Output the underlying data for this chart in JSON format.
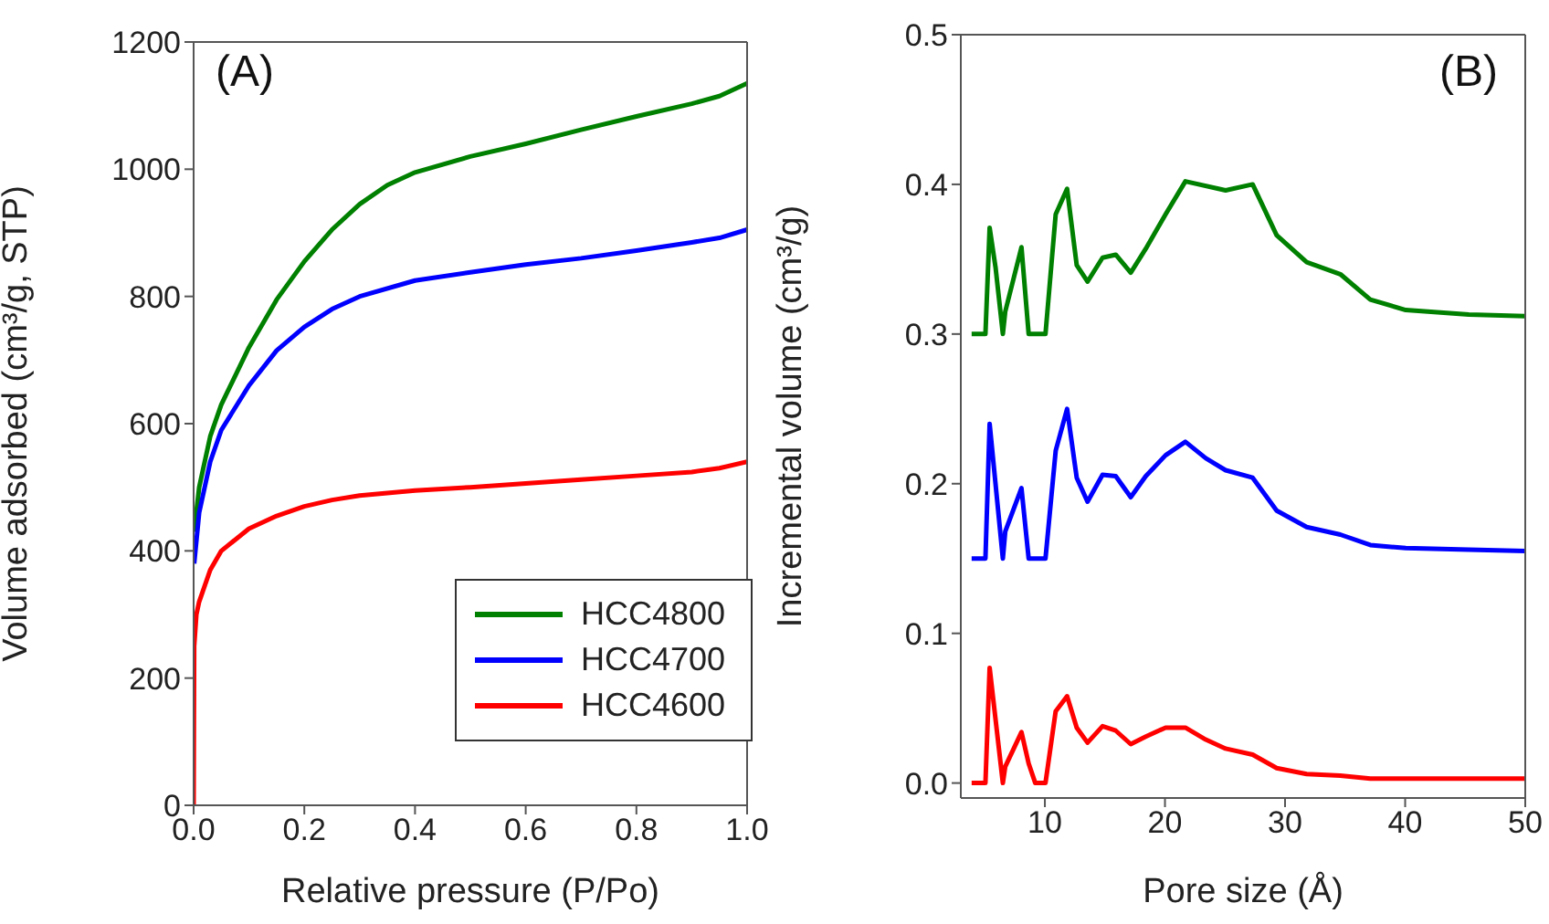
{
  "chart_data": [
    {
      "type": "line",
      "xlabel": "Relative pressure (P/Po)",
      "ylabel": "Volume adsorbed (cm³/g, STP)",
      "annotations": [
        "(A)"
      ],
      "xlim": [
        0,
        1
      ],
      "xticks": [
        {
          "value": 0,
          "label": "0.0"
        },
        {
          "value": 0.2,
          "label": "0.2"
        },
        {
          "value": 0.4,
          "label": "0.4"
        },
        {
          "value": 0.6,
          "label": "0.6"
        },
        {
          "value": 0.8,
          "label": "0.8"
        },
        {
          "value": 1,
          "label": "1.0"
        }
      ],
      "ylim": [
        0,
        1200
      ],
      "yticks": [
        0,
        200,
        400,
        600,
        800,
        1000,
        1200
      ],
      "grid": false,
      "legend": "bottom right",
      "marker": "none",
      "line_style": "solid",
      "series": [
        {
          "name": "HCC4800",
          "color": "#008000",
          "x": [
            0.001,
            0.01,
            0.03,
            0.05,
            0.1,
            0.15,
            0.2,
            0.25,
            0.3,
            0.35,
            0.4,
            0.5,
            0.6,
            0.7,
            0.8,
            0.9,
            0.95,
            1.0
          ],
          "values": [
            430,
            500,
            580,
            630,
            720,
            795,
            855,
            905,
            945,
            975,
            995,
            1020,
            1040,
            1062,
            1083,
            1103,
            1115,
            1135
          ]
        },
        {
          "name": "HCC4700",
          "color": "#0000ff",
          "x": [
            0.001,
            0.01,
            0.03,
            0.05,
            0.1,
            0.15,
            0.2,
            0.25,
            0.3,
            0.4,
            0.5,
            0.6,
            0.7,
            0.8,
            0.9,
            0.95,
            1.0
          ],
          "values": [
            380,
            460,
            540,
            590,
            660,
            715,
            752,
            780,
            800,
            825,
            838,
            850,
            860,
            872,
            885,
            892,
            905
          ]
        },
        {
          "name": "HCC4600",
          "color": "#ff0000",
          "x": [
            0,
            0.001,
            0.005,
            0.01,
            0.03,
            0.05,
            0.1,
            0.15,
            0.2,
            0.25,
            0.3,
            0.4,
            0.5,
            0.6,
            0.7,
            0.8,
            0.9,
            0.95,
            1.0
          ],
          "values": [
            0,
            250,
            300,
            320,
            370,
            400,
            435,
            455,
            470,
            480,
            487,
            495,
            500,
            506,
            512,
            518,
            524,
            530,
            540
          ]
        }
      ]
    },
    {
      "type": "line",
      "xlabel": "Pore size (Å)",
      "ylabel": "Incremental volume (cm³/g)",
      "annotations": [
        "(B)"
      ],
      "xlim": [
        3,
        50
      ],
      "xticks": [
        10,
        20,
        30,
        40,
        50
      ],
      "ylim": [
        -0.01,
        0.5
      ],
      "yticks": [
        {
          "value": 0,
          "label": "0.0"
        },
        {
          "value": 0.1,
          "label": "0.1"
        },
        {
          "value": 0.2,
          "label": "0.2"
        },
        {
          "value": 0.3,
          "label": "0.3"
        },
        {
          "value": 0.4,
          "label": "0.4"
        },
        {
          "value": 0.5,
          "label": "0.5"
        }
      ],
      "grid": false,
      "marker": "none",
      "line_style": "solid",
      "series": [
        {
          "color": "#008000",
          "x": [
            3.9,
            5.05,
            5.4,
            5.9,
            6.5,
            6.7,
            8.05,
            8.65,
            10.05,
            10.9,
            11.85,
            12.65,
            13.55,
            14.8,
            15.9,
            17.15,
            18.4,
            20.05,
            21.7,
            25.05,
            27.3,
            29.3,
            31.8,
            34.6,
            37.1,
            40.05,
            45.3,
            50
          ],
          "values": [
            0.3,
            0.3,
            0.371,
            0.344,
            0.3,
            0.315,
            0.358,
            0.3,
            0.3,
            0.38,
            0.397,
            0.346,
            0.335,
            0.351,
            0.353,
            0.341,
            0.357,
            0.38,
            0.402,
            0.396,
            0.4,
            0.366,
            0.348,
            0.34,
            0.323,
            0.316,
            0.313,
            0.312
          ]
        },
        {
          "color": "#0000ff",
          "x": [
            3.9,
            5.05,
            5.4,
            6.5,
            6.7,
            8.05,
            8.65,
            10.05,
            10.9,
            11.85,
            12.65,
            13.55,
            14.8,
            15.9,
            17.15,
            18.4,
            20.05,
            21.7,
            23.4,
            25.05,
            27.3,
            29.3,
            31.8,
            34.6,
            37.1,
            40.05,
            45.3,
            50
          ],
          "values": [
            0.15,
            0.15,
            0.24,
            0.15,
            0.168,
            0.197,
            0.15,
            0.15,
            0.222,
            0.25,
            0.204,
            0.188,
            0.206,
            0.205,
            0.191,
            0.205,
            0.219,
            0.228,
            0.217,
            0.209,
            0.204,
            0.182,
            0.171,
            0.166,
            0.159,
            0.157,
            0.156,
            0.155
          ]
        },
        {
          "color": "#ff0000",
          "x": [
            3.9,
            5.05,
            5.4,
            6.5,
            6.7,
            8.05,
            8.65,
            9.2,
            10.05,
            10.9,
            11.85,
            12.65,
            13.55,
            14.8,
            15.9,
            17.15,
            18.4,
            20.05,
            21.7,
            23.4,
            25.05,
            27.3,
            29.3,
            31.8,
            34.6,
            37.1,
            40.05,
            50
          ],
          "values": [
            0,
            0,
            0.077,
            0,
            0.011,
            0.034,
            0.013,
            0,
            0,
            0.048,
            0.058,
            0.037,
            0.027,
            0.038,
            0.035,
            0.026,
            0.031,
            0.037,
            0.037,
            0.029,
            0.023,
            0.019,
            0.01,
            0.006,
            0.005,
            0.003,
            0.003,
            0.003
          ]
        }
      ]
    }
  ]
}
